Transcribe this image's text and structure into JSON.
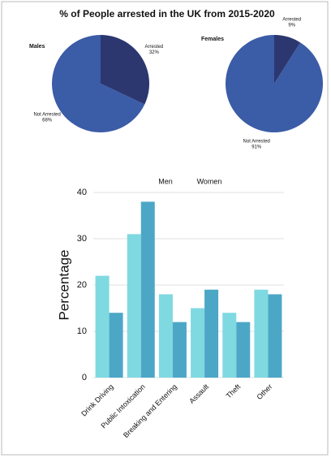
{
  "title": "% of People arrested in the UK from 2015-2020",
  "chart_data": [
    {
      "type": "pie",
      "title": "Males",
      "categories": [
        "Arrested",
        "Not Arrested"
      ],
      "values": [
        32,
        68
      ],
      "value_labels": [
        "32%",
        "68%"
      ],
      "colors": [
        "#2c3770",
        "#3b5ca6"
      ]
    },
    {
      "type": "pie",
      "title": "Females",
      "categories": [
        "Arrested",
        "Not Arrested"
      ],
      "values": [
        9,
        91
      ],
      "value_labels": [
        "9%",
        "91%"
      ],
      "colors": [
        "#2c3770",
        "#3b5ca6"
      ]
    },
    {
      "type": "bar",
      "ylabel": "Percentage",
      "categories": [
        "Drink Driving",
        "Public Intoxication",
        "Breaking and Entering",
        "Assault",
        "Theft",
        "Other"
      ],
      "series": [
        {
          "name": "Men",
          "color": "#7fd9e1",
          "values": [
            22,
            31,
            18,
            15,
            14,
            19
          ]
        },
        {
          "name": "Women",
          "color": "#4ca7c7",
          "values": [
            14,
            38,
            12,
            19,
            12,
            18
          ]
        }
      ],
      "ylim": [
        0,
        40
      ],
      "yticks": [
        0,
        10,
        20,
        30,
        40
      ],
      "grid": true
    }
  ]
}
